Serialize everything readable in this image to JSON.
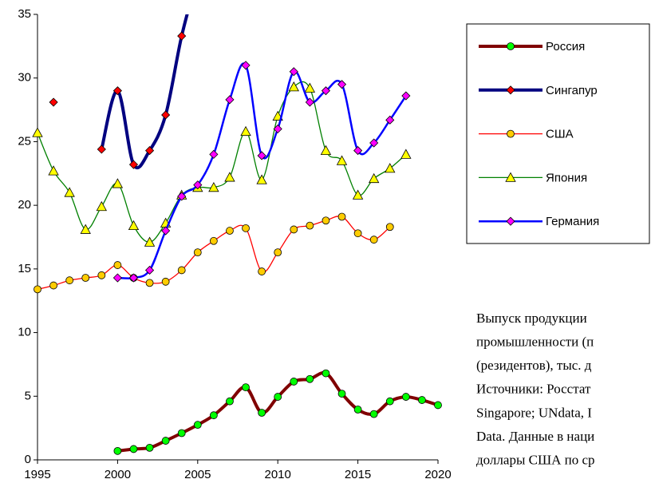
{
  "chart_data": {
    "type": "line",
    "x": [
      1995,
      1996,
      1997,
      1998,
      1999,
      2000,
      2001,
      2002,
      2003,
      2004,
      2005,
      2006,
      2007,
      2008,
      2009,
      2010,
      2011,
      2012,
      2013,
      2014,
      2015,
      2016,
      2017,
      2018,
      2019,
      2020
    ],
    "series": [
      {
        "name": "Россия",
        "color": "#800000",
        "marker": "circle",
        "marker_color": "#00ff00",
        "width": 4,
        "values": [
          null,
          null,
          null,
          null,
          null,
          0.7,
          0.85,
          0.95,
          1.5,
          2.1,
          2.75,
          3.5,
          4.6,
          5.7,
          3.7,
          4.95,
          6.15,
          6.35,
          6.8,
          5.2,
          3.95,
          3.6,
          4.6,
          4.95,
          4.7,
          4.3
        ]
      },
      {
        "name": "Сингапур",
        "color": "#000080",
        "marker": "diamond",
        "marker_color": "#ff0000",
        "width": 4,
        "values": [
          null,
          28.1,
          null,
          null,
          24.4,
          29.0,
          23.2,
          24.3,
          27.1,
          33.3,
          38,
          null,
          null,
          null,
          null,
          null,
          null,
          null,
          null,
          null,
          null,
          null,
          null,
          null,
          null,
          null
        ]
      },
      {
        "name": "США",
        "color": "#ff0000",
        "marker": "circle",
        "marker_color": "#ffcc00",
        "width": 1.3,
        "values": [
          13.4,
          13.7,
          14.1,
          14.3,
          14.5,
          15.3,
          14.3,
          13.9,
          14.0,
          14.9,
          16.3,
          17.2,
          18.0,
          18.2,
          14.8,
          16.3,
          18.1,
          18.4,
          18.8,
          19.1,
          17.8,
          17.3,
          18.3,
          null,
          null,
          null
        ]
      },
      {
        "name": "Япония",
        "color": "#008000",
        "marker": "triangle",
        "marker_color": "#ffff00",
        "width": 1.3,
        "values": [
          25.7,
          22.7,
          21.0,
          18.1,
          19.9,
          21.7,
          18.4,
          17.1,
          18.6,
          20.8,
          21.4,
          21.4,
          22.2,
          25.8,
          22.0,
          27.0,
          29.3,
          29.2,
          24.3,
          23.5,
          20.8,
          22.1,
          22.9,
          24.0,
          null,
          null
        ]
      },
      {
        "name": "Германия",
        "color": "#0000ff",
        "marker": "diamond",
        "marker_color": "#ff00ff",
        "width": 2.5,
        "values": [
          null,
          null,
          null,
          null,
          null,
          14.3,
          14.3,
          14.9,
          18.0,
          20.7,
          21.6,
          24.0,
          28.3,
          31.0,
          23.9,
          26.0,
          30.5,
          28.1,
          29.0,
          29.5,
          24.3,
          24.9,
          26.7,
          28.6,
          null,
          null
        ]
      }
    ],
    "xlim": [
      1995,
      2020
    ],
    "xticks": [
      1995,
      2000,
      2005,
      2010,
      2015,
      2020
    ],
    "ylim": [
      0,
      35
    ],
    "yticks": [
      0,
      5,
      10,
      15,
      20,
      25,
      30,
      35
    ],
    "annotations": [
      "Выпуск продукции",
      "промышленности (п",
      "(резидентов), тыс. д",
      "Источники: Росстат",
      "Singapore; UNdata, I",
      "Data. Данные в наци",
      "доллары США по ср"
    ]
  }
}
